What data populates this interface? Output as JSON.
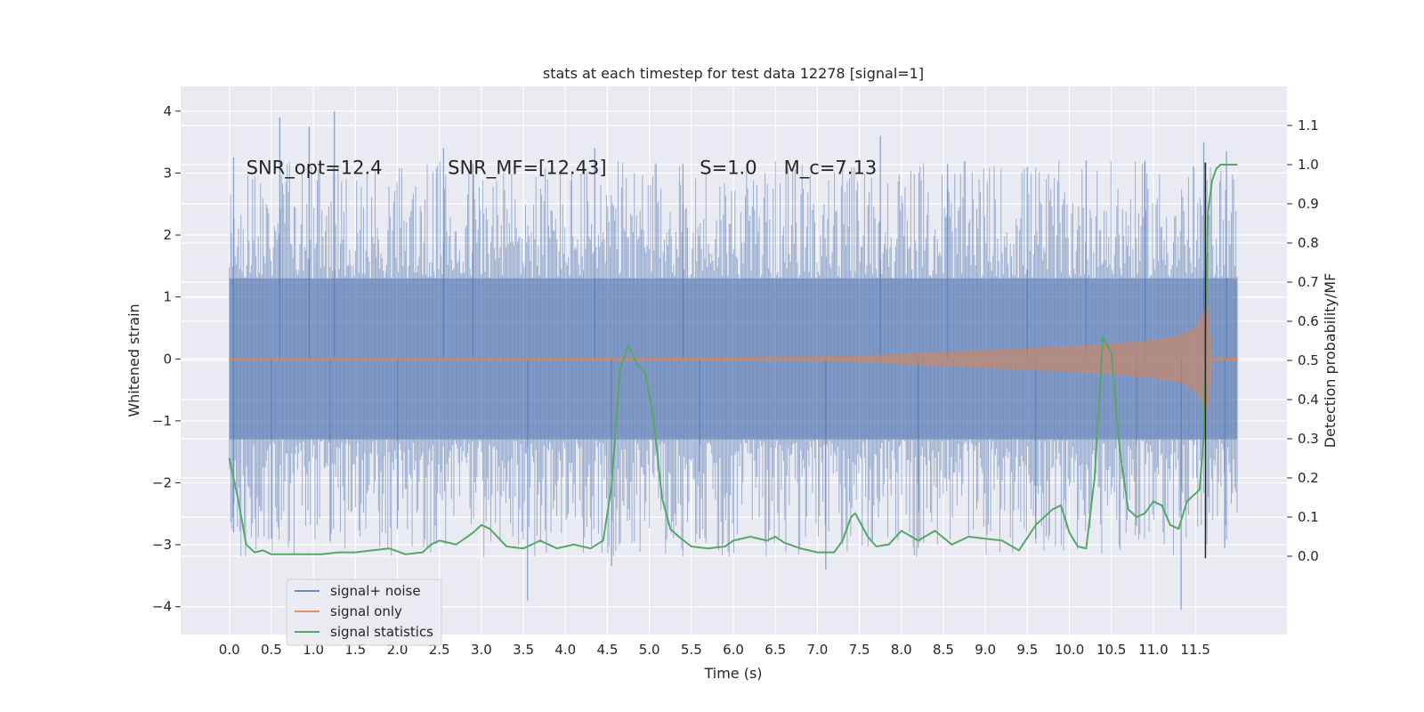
{
  "chart_data": {
    "type": "line",
    "title": "stats at each timestep for test data 12278 [signal=1]",
    "xlabel": "Time (s)",
    "ylabel_left": "Whitened strain",
    "ylabel_right": "Detection probability/MF",
    "xlim": [
      -0.58,
      12.59
    ],
    "ylim_left": [
      -4.45,
      4.4
    ],
    "ylim_right": [
      -0.2,
      1.2
    ],
    "x_ticks": [
      0.0,
      0.5,
      1.0,
      1.5,
      2.0,
      2.5,
      3.0,
      3.5,
      4.0,
      4.5,
      5.0,
      5.5,
      6.0,
      6.5,
      7.0,
      7.5,
      8.0,
      8.5,
      9.0,
      9.5,
      10.0,
      10.5,
      11.0,
      11.5
    ],
    "x_tick_labels": [
      "0.0",
      "0.5",
      "1.0",
      "1.5",
      "2.0",
      "2.5",
      "3.0",
      "3.5",
      "4.0",
      "4.5",
      "5.0",
      "5.5",
      "6.0",
      "6.5",
      "7.0",
      "7.5",
      "8.0",
      "8.5",
      "9.0",
      "9.5",
      "10.0",
      "10.5",
      "11.0",
      "11.5"
    ],
    "y_left_ticks": [
      -4,
      -3,
      -2,
      -1,
      0,
      1,
      2,
      3,
      4
    ],
    "y_left_tick_labels": [
      "−4",
      "−3",
      "−2",
      "−1",
      "0",
      "1",
      "2",
      "3",
      "4"
    ],
    "y_right_ticks": [
      0.0,
      0.1,
      0.2,
      0.3,
      0.4,
      0.5,
      0.6,
      0.7,
      0.8,
      0.9,
      1.0,
      1.1
    ],
    "y_right_tick_labels": [
      "0.0",
      "0.1",
      "0.2",
      "0.3",
      "0.4",
      "0.5",
      "0.6",
      "0.7",
      "0.8",
      "0.9",
      "1.0",
      "1.1"
    ],
    "grid": true,
    "legend_position": "lower-left",
    "annotations": [
      {
        "text": "SNR_opt=12.4",
        "x": 0.2,
        "y": 3.1
      },
      {
        "text": "SNR_MF=[12.43]",
        "x": 2.6,
        "y": 3.1
      },
      {
        "text": "S=1.0",
        "x": 5.6,
        "y": 3.1
      },
      {
        "text": "M_c=7.13",
        "x": 6.6,
        "y": 3.1
      }
    ],
    "marker_line": {
      "x": 11.62,
      "y_right": [
        -0.005,
        1.005
      ]
    },
    "series": [
      {
        "name": "signal+ noise",
        "axis": "left",
        "color": "#4c72b0",
        "alpha": 0.5,
        "kind": "noise-envelope",
        "x_range": [
          0.0,
          12.0
        ],
        "core_amplitude": 1.3,
        "peaks_max": [
          [
            0.05,
            3.25
          ],
          [
            0.6,
            3.9
          ],
          [
            0.95,
            3.75
          ],
          [
            1.25,
            4.0
          ],
          [
            2.55,
            3.4
          ],
          [
            2.9,
            3.15
          ],
          [
            4.35,
            3.4
          ],
          [
            5.4,
            3.15
          ],
          [
            7.75,
            3.6
          ],
          [
            8.55,
            3.15
          ],
          [
            9.5,
            3.1
          ],
          [
            10.2,
            3.2
          ],
          [
            10.9,
            3.2
          ],
          [
            11.6,
            3.5
          ],
          [
            11.87,
            3.35
          ]
        ],
        "peaks_min": [
          [
            0.05,
            -2.8
          ],
          [
            0.5,
            -2.9
          ],
          [
            1.2,
            -2.95
          ],
          [
            2.0,
            -2.75
          ],
          [
            3.55,
            -3.9
          ],
          [
            4.55,
            -3.35
          ],
          [
            5.6,
            -2.9
          ],
          [
            7.1,
            -3.4
          ],
          [
            8.2,
            -3.05
          ],
          [
            9.6,
            -2.9
          ],
          [
            10.8,
            -2.7
          ],
          [
            11.33,
            -4.05
          ],
          [
            11.85,
            -3.05
          ]
        ]
      },
      {
        "name": "signal only",
        "axis": "left",
        "color": "#dd8452",
        "alpha": 0.55,
        "kind": "chirp-envelope",
        "x": [
          0.0,
          3.0,
          6.0,
          7.0,
          7.5,
          8.0,
          8.5,
          9.0,
          9.5,
          10.0,
          10.5,
          11.0,
          11.3,
          11.5,
          11.6,
          11.65,
          11.7,
          12.0
        ],
        "amplitude": [
          0.02,
          0.025,
          0.03,
          0.035,
          0.045,
          0.08,
          0.11,
          0.14,
          0.17,
          0.2,
          0.24,
          0.3,
          0.37,
          0.5,
          0.75,
          0.85,
          0.03,
          0.03
        ]
      },
      {
        "name": "signal statistics",
        "axis": "right",
        "color": "#55a868",
        "x": [
          0.0,
          0.1,
          0.2,
          0.3,
          0.4,
          0.5,
          0.7,
          0.9,
          1.1,
          1.3,
          1.5,
          1.7,
          1.9,
          2.1,
          2.3,
          2.4,
          2.5,
          2.7,
          2.9,
          3.0,
          3.1,
          3.3,
          3.5,
          3.7,
          3.9,
          4.1,
          4.3,
          4.45,
          4.55,
          4.65,
          4.75,
          4.85,
          4.95,
          5.05,
          5.15,
          5.25,
          5.35,
          5.5,
          5.7,
          5.9,
          6.0,
          6.2,
          6.4,
          6.5,
          6.6,
          6.8,
          7.0,
          7.2,
          7.3,
          7.4,
          7.45,
          7.6,
          7.7,
          7.85,
          8.0,
          8.2,
          8.4,
          8.6,
          8.8,
          9.0,
          9.2,
          9.4,
          9.6,
          9.8,
          9.9,
          10.0,
          10.1,
          10.2,
          10.3,
          10.4,
          10.5,
          10.6,
          10.7,
          10.8,
          10.9,
          11.0,
          11.1,
          11.2,
          11.3,
          11.4,
          11.5,
          11.55,
          11.6,
          11.65,
          11.7,
          11.75,
          11.8,
          11.9,
          12.0
        ],
        "y": [
          0.25,
          0.15,
          0.03,
          0.01,
          0.015,
          0.005,
          0.005,
          0.005,
          0.005,
          0.01,
          0.01,
          0.015,
          0.02,
          0.005,
          0.01,
          0.03,
          0.04,
          0.03,
          0.06,
          0.08,
          0.07,
          0.025,
          0.02,
          0.04,
          0.02,
          0.03,
          0.02,
          0.04,
          0.18,
          0.48,
          0.54,
          0.49,
          0.47,
          0.35,
          0.15,
          0.07,
          0.05,
          0.025,
          0.02,
          0.025,
          0.04,
          0.05,
          0.04,
          0.05,
          0.035,
          0.02,
          0.01,
          0.01,
          0.04,
          0.1,
          0.11,
          0.05,
          0.025,
          0.03,
          0.065,
          0.04,
          0.065,
          0.03,
          0.05,
          0.045,
          0.04,
          0.015,
          0.08,
          0.12,
          0.13,
          0.06,
          0.025,
          0.02,
          0.2,
          0.56,
          0.52,
          0.27,
          0.12,
          0.1,
          0.11,
          0.14,
          0.13,
          0.08,
          0.07,
          0.14,
          0.16,
          0.17,
          0.31,
          0.88,
          0.96,
          0.99,
          1.0,
          1.0,
          1.0
        ]
      }
    ]
  }
}
